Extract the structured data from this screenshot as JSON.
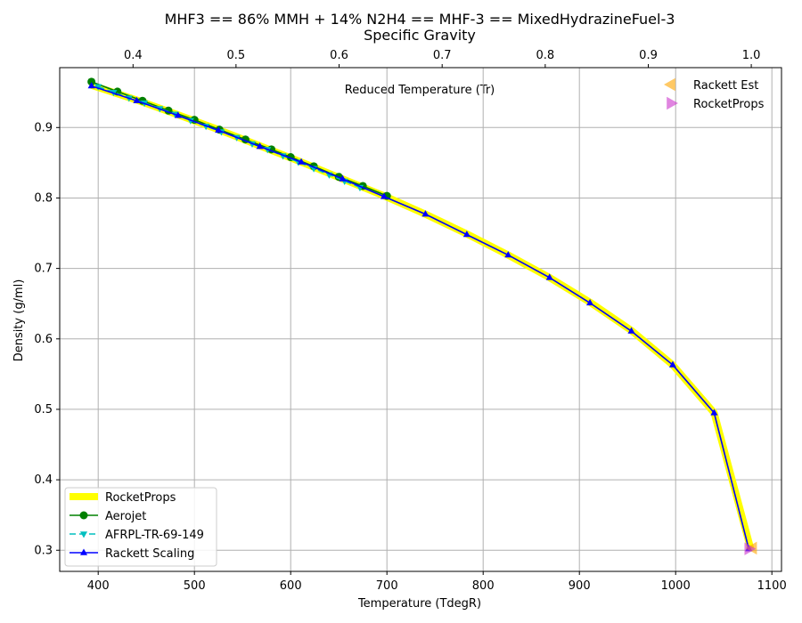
{
  "chart_data": {
    "type": "line",
    "title": "MHF3 == 86% MMH + 14% N2H4 == MHF-3 == MixedHydrazineFuel-3",
    "top_axis_label": "Specific Gravity",
    "annotation": "Reduced Temperature (Tr)",
    "xlabel": "Temperature (TdegR)",
    "ylabel": "Density (g/ml)",
    "xlim": [
      360,
      1110
    ],
    "ylim": [
      0.27,
      0.985
    ],
    "x_ticks": [
      400,
      500,
      600,
      700,
      800,
      900,
      1000,
      1100
    ],
    "y_ticks": [
      0.3,
      0.4,
      0.5,
      0.6,
      0.7,
      0.8,
      0.9
    ],
    "top_ticks": [
      {
        "label": "0.4",
        "x": 436.2
      },
      {
        "label": "0.5",
        "x": 543.2
      },
      {
        "label": "0.6",
        "x": 650.3
      },
      {
        "label": "0.7",
        "x": 757.4
      },
      {
        "label": "0.8",
        "x": 864.5
      },
      {
        "label": "0.9",
        "x": 971.6
      },
      {
        "label": "1.0",
        "x": 1078.6
      }
    ],
    "grid": true,
    "lower_legend_position": "lower-left",
    "upper_legend_position": "upper-right",
    "series": [
      {
        "name": "RocketProps",
        "color": "#ffff00",
        "style": "thick-line",
        "x": [
          393,
          440,
          483,
          525,
          568,
          611,
          654,
          697,
          740,
          783,
          826,
          869,
          911,
          954,
          997,
          1040,
          1078
        ],
        "y": [
          0.96,
          0.939,
          0.918,
          0.897,
          0.874,
          0.851,
          0.827,
          0.803,
          0.777,
          0.749,
          0.719,
          0.687,
          0.652,
          0.612,
          0.563,
          0.495,
          0.302
        ]
      },
      {
        "name": "Aerojet",
        "color": "#008000",
        "marker": "circle",
        "x": [
          393,
          420,
          446,
          473,
          500,
          526,
          553,
          580,
          600,
          624,
          650,
          675,
          700
        ],
        "y": [
          0.965,
          0.951,
          0.938,
          0.924,
          0.911,
          0.897,
          0.883,
          0.869,
          0.858,
          0.845,
          0.83,
          0.817,
          0.803
        ]
      },
      {
        "name": "AFRPL-TR-69-149",
        "color": "#00bfbf",
        "marker": "triangle-down",
        "x": [
          400,
          416,
          432,
          448,
          464,
          480,
          496,
          512,
          528,
          544,
          560,
          576,
          592,
          608,
          624,
          640,
          656,
          672
        ],
        "y": [
          0.958,
          0.95,
          0.942,
          0.935,
          0.927,
          0.919,
          0.91,
          0.902,
          0.894,
          0.886,
          0.877,
          0.869,
          0.86,
          0.851,
          0.842,
          0.833,
          0.824,
          0.815
        ]
      },
      {
        "name": "Rackett Scaling",
        "color": "#0000ff",
        "marker": "triangle-up",
        "x": [
          393,
          440,
          483,
          525,
          568,
          611,
          654,
          697,
          740,
          783,
          826,
          869,
          911,
          954,
          997,
          1040,
          1076
        ],
        "y": [
          0.959,
          0.938,
          0.917,
          0.896,
          0.873,
          0.851,
          0.827,
          0.802,
          0.777,
          0.748,
          0.719,
          0.687,
          0.651,
          0.611,
          0.563,
          0.495,
          0.302
        ]
      }
    ],
    "critical_points": [
      {
        "name": "Rackett Est",
        "color": "#ffa500",
        "marker": "triangle-left",
        "x": 1080,
        "y": 0.303
      },
      {
        "name": "RocketProps",
        "color": "#cc33cc",
        "marker": "triangle-right",
        "x": 1076,
        "y": 0.302
      }
    ]
  }
}
